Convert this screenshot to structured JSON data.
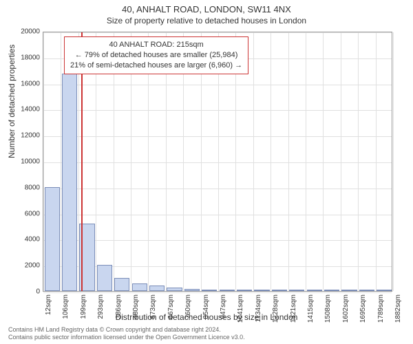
{
  "title": "40, ANHALT ROAD, LONDON, SW11 4NX",
  "subtitle": "Size of property relative to detached houses in London",
  "ylabel": "Number of detached properties",
  "xlabel": "Distribution of detached houses by size in London",
  "chart": {
    "type": "histogram",
    "background_color": "#ffffff",
    "grid_color": "#e0e0e0",
    "axis_color": "#999999",
    "bar_fill": "#c9d6ef",
    "bar_border": "#7a8db8",
    "marker_color": "#cc3333",
    "title_fontsize": 13,
    "label_fontsize": 12,
    "tick_fontsize": 10,
    "ylim": [
      0,
      20000
    ],
    "ytick_step": 2000,
    "yticks": [
      0,
      2000,
      4000,
      6000,
      8000,
      10000,
      12000,
      14000,
      16000,
      18000,
      20000
    ],
    "xticks": [
      "12sqm",
      "106sqm",
      "199sqm",
      "293sqm",
      "386sqm",
      "480sqm",
      "573sqm",
      "667sqm",
      "760sqm",
      "854sqm",
      "947sqm",
      "1041sqm",
      "1134sqm",
      "1228sqm",
      "1321sqm",
      "1415sqm",
      "1508sqm",
      "1602sqm",
      "1695sqm",
      "1789sqm",
      "1882sqm"
    ],
    "values": [
      8000,
      16700,
      5200,
      2000,
      1000,
      600,
      400,
      250,
      180,
      120,
      80,
      60,
      40,
      30,
      20,
      15,
      10,
      8,
      5,
      3
    ],
    "marker_x_index": 2.17,
    "bar_width": 0.88
  },
  "callout": {
    "line1": "40 ANHALT ROAD: 215sqm",
    "line2": "← 79% of detached houses are smaller (25,984)",
    "line3": "21% of semi-detached houses are larger (6,960) →"
  },
  "footer": {
    "line1": "Contains HM Land Registry data © Crown copyright and database right 2024.",
    "line2": "Contains public sector information licensed under the Open Government Licence v3.0."
  }
}
